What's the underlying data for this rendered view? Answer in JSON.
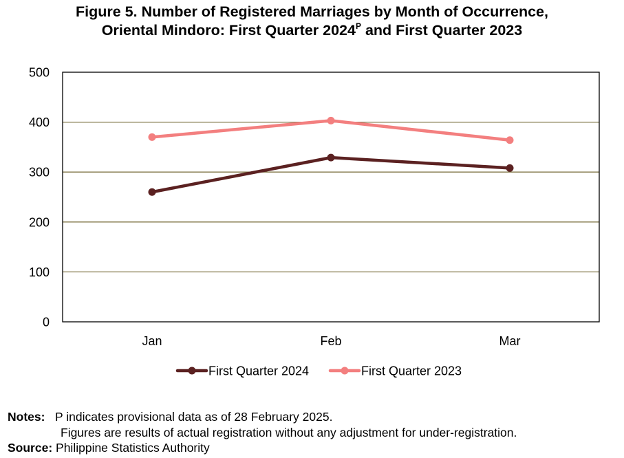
{
  "title": {
    "line1": "Figure 5. Number of Registered Marriages by Month of Occurrence,",
    "line2_before_sup": "Oriental Mindoro: First Quarter 2024",
    "line2_sup": "P",
    "line2_after_sup": " and First Quarter 2023"
  },
  "chart_data": {
    "type": "line",
    "categories": [
      "Jan",
      "Feb",
      "Mar"
    ],
    "series": [
      {
        "name": "First Quarter 2024",
        "values": [
          260,
          329,
          308
        ],
        "color": "#5b2121"
      },
      {
        "name": "First Quarter 2023",
        "values": [
          370,
          403,
          364
        ],
        "color": "#f37f7f"
      }
    ],
    "xlabel": "",
    "ylabel": "",
    "ylim": [
      0,
      500
    ],
    "yticks": [
      "0",
      "100",
      "200",
      "300",
      "400",
      "500"
    ],
    "grid": true,
    "gridline_color": "#7f7444",
    "legend_position": "bottom"
  },
  "notes": {
    "label": "Notes:",
    "line1": "P indicates provisional data as of 28 February 2025.",
    "line2": "Figures are results of actual registration without any adjustment for under-registration."
  },
  "source": {
    "label": "Source:",
    "text": "Philippine Statistics Authority"
  }
}
